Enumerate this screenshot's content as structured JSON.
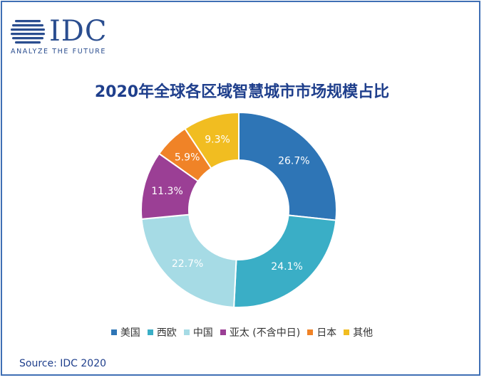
{
  "logo": {
    "wordmark": "IDC",
    "tagline": "ANALYZE THE FUTURE"
  },
  "source": "Source: IDC 2020",
  "chart_data": {
    "type": "pie",
    "donut": true,
    "title": "2020年全球各区域智慧城市市场规模占比",
    "unit": "%",
    "legend_position": "bottom",
    "categories": [
      "美国",
      "西欧",
      "中国",
      "亚太 (不含中日)",
      "日本",
      "其他"
    ],
    "values": [
      26.7,
      24.1,
      22.7,
      11.3,
      5.9,
      9.3
    ],
    "labels": [
      "26.7%",
      "24.1%",
      "22.7%",
      "11.3%",
      "5.9%",
      "9.3%"
    ],
    "colors": [
      "#2e75b6",
      "#3aaec6",
      "#a6dbe5",
      "#9b3f95",
      "#f08327",
      "#f1bd21"
    ]
  }
}
